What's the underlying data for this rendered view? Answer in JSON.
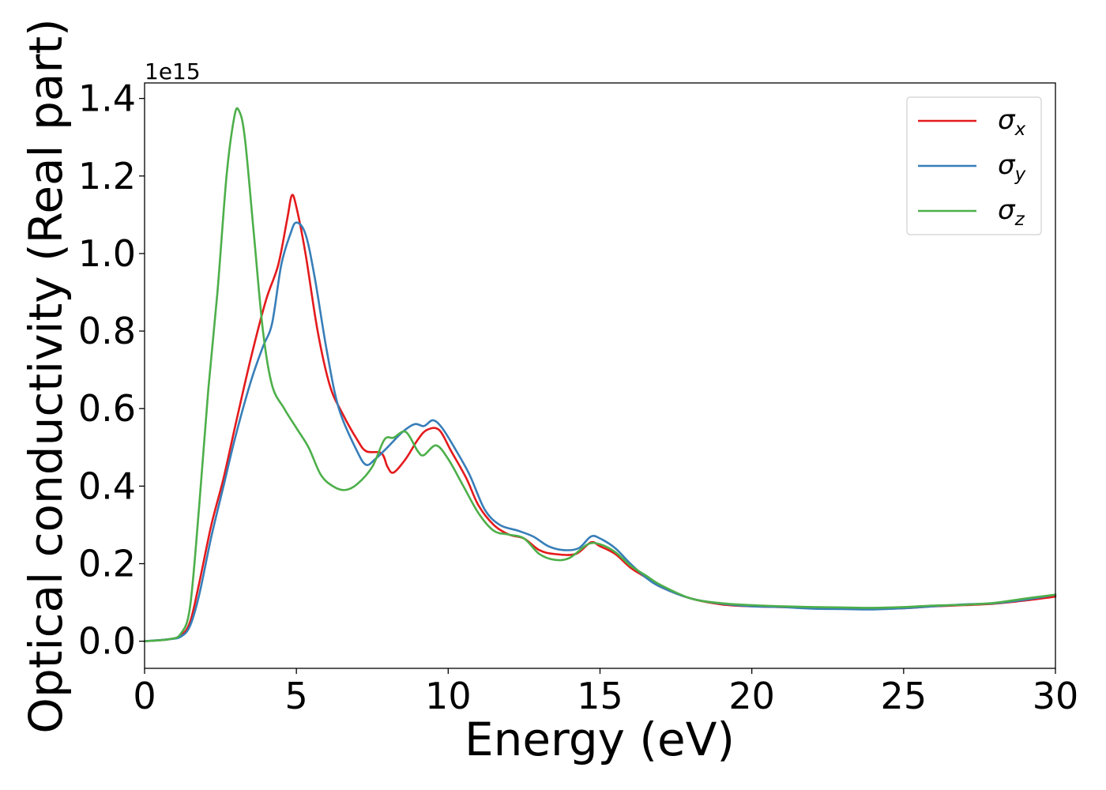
{
  "chart_data": {
    "type": "line",
    "xlabel": "Energy (eV)",
    "ylabel": "Optical conductivity (Real part)",
    "y_offset_label": "1e15",
    "xlim": [
      0,
      30
    ],
    "ylim": [
      -0.07,
      1.44
    ],
    "x_ticks": [
      0,
      5,
      10,
      15,
      20,
      25,
      30
    ],
    "x_tick_labels": [
      "0",
      "5",
      "10",
      "15",
      "20",
      "25",
      "30"
    ],
    "y_ticks": [
      0.0,
      0.2,
      0.4,
      0.6,
      0.8,
      1.0,
      1.2,
      1.4
    ],
    "y_tick_labels": [
      "0.0",
      "0.2",
      "0.4",
      "0.6",
      "0.8",
      "1.0",
      "1.2",
      "1.4"
    ],
    "grid": false,
    "legend_position": "top-right",
    "series": [
      {
        "name": "σx",
        "symbol": "σ",
        "subscript": "x",
        "color": "#e41a1c",
        "points": [
          [
            0,
            0
          ],
          [
            0.8,
            0.005
          ],
          [
            1.2,
            0.015
          ],
          [
            1.5,
            0.05
          ],
          [
            1.8,
            0.15
          ],
          [
            2.2,
            0.3
          ],
          [
            2.6,
            0.42
          ],
          [
            3.0,
            0.56
          ],
          [
            3.5,
            0.73
          ],
          [
            4.0,
            0.88
          ],
          [
            4.4,
            0.97
          ],
          [
            4.7,
            1.09
          ],
          [
            4.85,
            1.15
          ],
          [
            5.0,
            1.12
          ],
          [
            5.3,
            1.0
          ],
          [
            5.7,
            0.8
          ],
          [
            6.1,
            0.66
          ],
          [
            6.5,
            0.59
          ],
          [
            7.0,
            0.52
          ],
          [
            7.3,
            0.49
          ],
          [
            7.8,
            0.485
          ],
          [
            8.0,
            0.45
          ],
          [
            8.2,
            0.435
          ],
          [
            8.6,
            0.47
          ],
          [
            9.0,
            0.52
          ],
          [
            9.3,
            0.545
          ],
          [
            9.7,
            0.545
          ],
          [
            10.1,
            0.49
          ],
          [
            10.6,
            0.42
          ],
          [
            11.0,
            0.35
          ],
          [
            11.5,
            0.3
          ],
          [
            12.0,
            0.275
          ],
          [
            12.5,
            0.265
          ],
          [
            13.0,
            0.235
          ],
          [
            13.5,
            0.225
          ],
          [
            14.2,
            0.225
          ],
          [
            14.7,
            0.255
          ],
          [
            15.0,
            0.245
          ],
          [
            15.5,
            0.225
          ],
          [
            16.0,
            0.19
          ],
          [
            16.5,
            0.165
          ],
          [
            17.0,
            0.14
          ],
          [
            18.0,
            0.11
          ],
          [
            19.0,
            0.095
          ],
          [
            20.0,
            0.09
          ],
          [
            21.0,
            0.088
          ],
          [
            22.0,
            0.087
          ],
          [
            23.0,
            0.084
          ],
          [
            24.0,
            0.085
          ],
          [
            25.0,
            0.085
          ],
          [
            26.0,
            0.09
          ],
          [
            27.0,
            0.093
          ],
          [
            28.0,
            0.097
          ],
          [
            29.0,
            0.105
          ],
          [
            30.0,
            0.115
          ]
        ]
      },
      {
        "name": "σy",
        "symbol": "σ",
        "subscript": "y",
        "color": "#377eb8",
        "points": [
          [
            0,
            0
          ],
          [
            0.8,
            0.005
          ],
          [
            1.2,
            0.012
          ],
          [
            1.5,
            0.04
          ],
          [
            1.8,
            0.12
          ],
          [
            2.2,
            0.27
          ],
          [
            2.6,
            0.4
          ],
          [
            3.0,
            0.53
          ],
          [
            3.5,
            0.67
          ],
          [
            3.9,
            0.76
          ],
          [
            4.2,
            0.82
          ],
          [
            4.5,
            0.97
          ],
          [
            4.8,
            1.05
          ],
          [
            5.0,
            1.08
          ],
          [
            5.3,
            1.05
          ],
          [
            5.6,
            0.94
          ],
          [
            6.0,
            0.75
          ],
          [
            6.4,
            0.6
          ],
          [
            7.0,
            0.49
          ],
          [
            7.3,
            0.455
          ],
          [
            7.6,
            0.47
          ],
          [
            8.0,
            0.5
          ],
          [
            8.5,
            0.54
          ],
          [
            8.9,
            0.56
          ],
          [
            9.2,
            0.555
          ],
          [
            9.5,
            0.57
          ],
          [
            9.8,
            0.55
          ],
          [
            10.2,
            0.5
          ],
          [
            10.7,
            0.43
          ],
          [
            11.2,
            0.34
          ],
          [
            11.7,
            0.3
          ],
          [
            12.3,
            0.285
          ],
          [
            12.8,
            0.27
          ],
          [
            13.3,
            0.245
          ],
          [
            13.8,
            0.235
          ],
          [
            14.3,
            0.24
          ],
          [
            14.7,
            0.27
          ],
          [
            15.0,
            0.265
          ],
          [
            15.5,
            0.24
          ],
          [
            16.0,
            0.2
          ],
          [
            16.5,
            0.165
          ],
          [
            17.0,
            0.14
          ],
          [
            18.0,
            0.11
          ],
          [
            19.0,
            0.097
          ],
          [
            20.0,
            0.09
          ],
          [
            21.0,
            0.088
          ],
          [
            22.0,
            0.084
          ],
          [
            23.0,
            0.083
          ],
          [
            24.0,
            0.082
          ],
          [
            25.0,
            0.085
          ],
          [
            26.0,
            0.09
          ],
          [
            27.0,
            0.095
          ],
          [
            28.0,
            0.098
          ],
          [
            29.0,
            0.107
          ],
          [
            30.0,
            0.12
          ]
        ]
      },
      {
        "name": "σz",
        "symbol": "σ",
        "subscript": "z",
        "color": "#4daf4a",
        "points": [
          [
            0,
            0
          ],
          [
            0.8,
            0.005
          ],
          [
            1.2,
            0.02
          ],
          [
            1.5,
            0.09
          ],
          [
            1.8,
            0.35
          ],
          [
            2.1,
            0.65
          ],
          [
            2.4,
            0.9
          ],
          [
            2.7,
            1.2
          ],
          [
            2.95,
            1.35
          ],
          [
            3.1,
            1.37
          ],
          [
            3.3,
            1.3
          ],
          [
            3.6,
            1.05
          ],
          [
            3.9,
            0.8
          ],
          [
            4.2,
            0.66
          ],
          [
            4.6,
            0.6
          ],
          [
            5.0,
            0.55
          ],
          [
            5.4,
            0.5
          ],
          [
            5.8,
            0.43
          ],
          [
            6.2,
            0.4
          ],
          [
            6.6,
            0.39
          ],
          [
            7.0,
            0.405
          ],
          [
            7.5,
            0.45
          ],
          [
            7.9,
            0.52
          ],
          [
            8.2,
            0.525
          ],
          [
            8.6,
            0.54
          ],
          [
            9.0,
            0.49
          ],
          [
            9.2,
            0.48
          ],
          [
            9.6,
            0.505
          ],
          [
            10.0,
            0.47
          ],
          [
            10.5,
            0.4
          ],
          [
            11.0,
            0.33
          ],
          [
            11.5,
            0.285
          ],
          [
            12.0,
            0.275
          ],
          [
            12.5,
            0.265
          ],
          [
            13.0,
            0.225
          ],
          [
            13.5,
            0.21
          ],
          [
            14.0,
            0.215
          ],
          [
            14.6,
            0.25
          ],
          [
            15.0,
            0.25
          ],
          [
            15.5,
            0.23
          ],
          [
            16.0,
            0.195
          ],
          [
            16.5,
            0.17
          ],
          [
            17.0,
            0.145
          ],
          [
            18.0,
            0.11
          ],
          [
            19.0,
            0.098
          ],
          [
            20.0,
            0.093
          ],
          [
            21.0,
            0.09
          ],
          [
            22.0,
            0.088
          ],
          [
            23.0,
            0.087
          ],
          [
            24.0,
            0.086
          ],
          [
            25.0,
            0.088
          ],
          [
            26.0,
            0.092
          ],
          [
            27.0,
            0.094
          ],
          [
            28.0,
            0.099
          ],
          [
            29.0,
            0.11
          ],
          [
            30.0,
            0.12
          ]
        ]
      }
    ]
  }
}
